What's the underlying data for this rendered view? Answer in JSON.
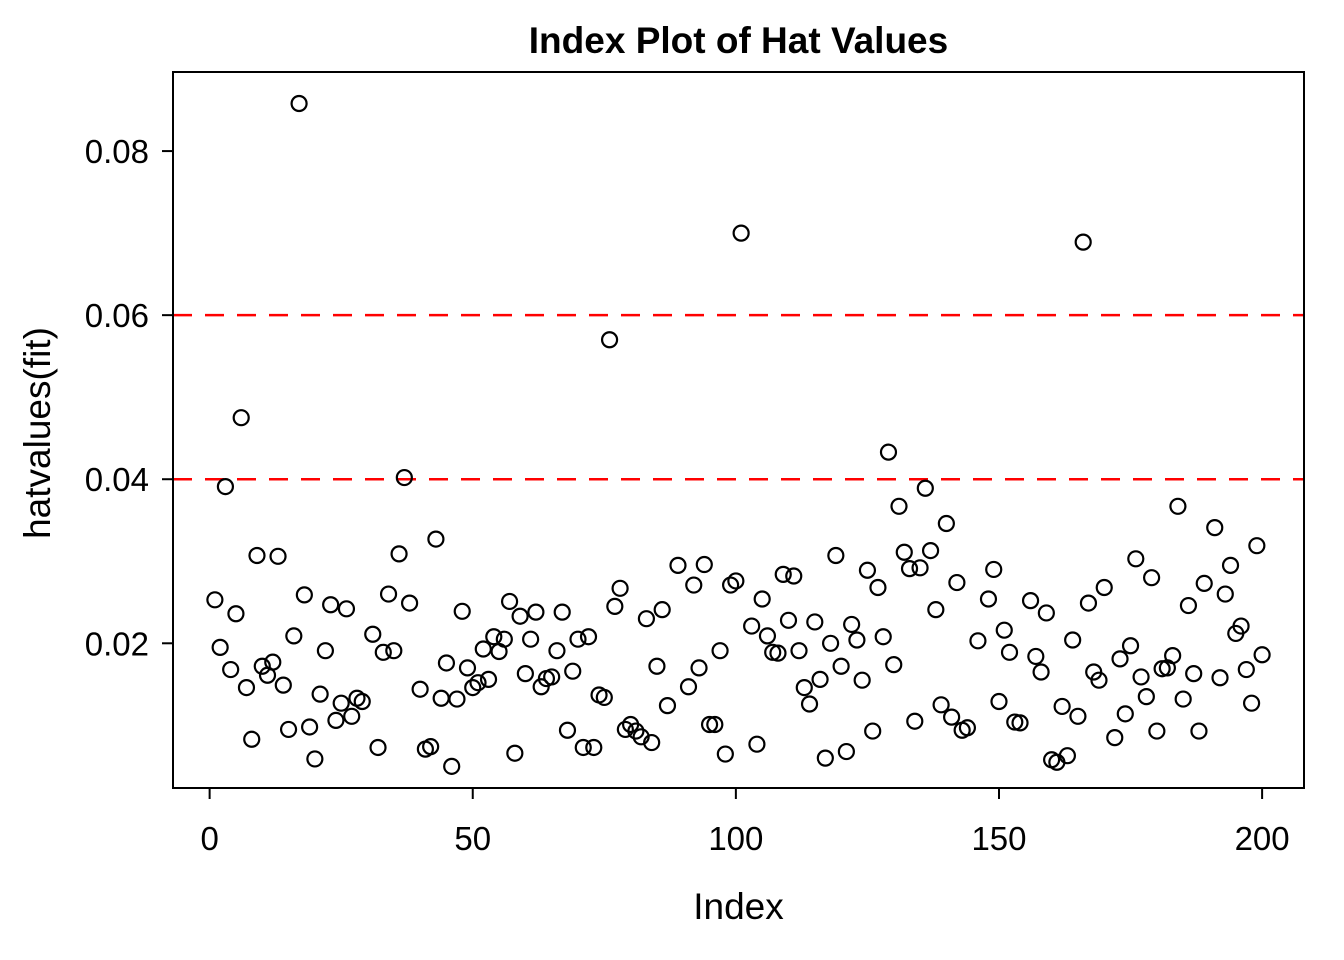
{
  "title": "Index Plot of Hat Values",
  "chart_data": {
    "type": "scatter",
    "title": "Index Plot of Hat Values",
    "xlabel": "Index",
    "ylabel": "hatvalues(fit)",
    "x_ticks": [
      0,
      50,
      100,
      150,
      200
    ],
    "x_tick_labels": [
      "0",
      "50",
      "100",
      "150",
      "200"
    ],
    "y_ticks": [
      0.02,
      0.04,
      0.06,
      0.08
    ],
    "y_tick_labels": [
      "0.02",
      "0.04",
      "0.06",
      "0.08"
    ],
    "xlim": [
      -6.96,
      207.96
    ],
    "ylim": [
      0.00236,
      0.08964
    ],
    "grid": false,
    "legend": null,
    "frame_color": "#000000",
    "point_color": "#000000",
    "cutoff_color": "#ff0000",
    "cutoff_lines": [
      {
        "y": 0.04,
        "style": "dashed",
        "color": "#ff0000"
      },
      {
        "y": 0.06,
        "style": "dashed",
        "color": "#ff0000"
      }
    ],
    "points": [
      [
        1,
        0.0253
      ],
      [
        2,
        0.0195
      ],
      [
        3,
        0.0391
      ],
      [
        4,
        0.0168
      ],
      [
        5,
        0.0236
      ],
      [
        6,
        0.0475
      ],
      [
        7,
        0.0146
      ],
      [
        8,
        0.0083
      ],
      [
        9,
        0.0307
      ],
      [
        10,
        0.0172
      ],
      [
        11,
        0.0161
      ],
      [
        12,
        0.0177
      ],
      [
        13,
        0.0306
      ],
      [
        14,
        0.0149
      ],
      [
        15,
        0.0095
      ],
      [
        16,
        0.0209
      ],
      [
        17,
        0.0858
      ],
      [
        18,
        0.0259
      ],
      [
        19,
        0.0098
      ],
      [
        20,
        0.0059
      ],
      [
        21,
        0.0138
      ],
      [
        22,
        0.0191
      ],
      [
        23,
        0.0247
      ],
      [
        24,
        0.0106
      ],
      [
        25,
        0.0127
      ],
      [
        26,
        0.0242
      ],
      [
        27,
        0.0111
      ],
      [
        28,
        0.0133
      ],
      [
        29,
        0.0129
      ],
      [
        31,
        0.0211
      ],
      [
        32,
        0.0073
      ],
      [
        33,
        0.0189
      ],
      [
        34,
        0.026
      ],
      [
        35,
        0.0191
      ],
      [
        36,
        0.0309
      ],
      [
        37,
        0.0402
      ],
      [
        38,
        0.0249
      ],
      [
        40,
        0.0144
      ],
      [
        41,
        0.0071
      ],
      [
        42,
        0.0074
      ],
      [
        43,
        0.0327
      ],
      [
        44,
        0.0133
      ],
      [
        45,
        0.0176
      ],
      [
        46,
        0.005
      ],
      [
        47,
        0.0132
      ],
      [
        48,
        0.0239
      ],
      [
        49,
        0.017
      ],
      [
        50,
        0.0146
      ],
      [
        51,
        0.0152
      ],
      [
        52,
        0.0193
      ],
      [
        53,
        0.0156
      ],
      [
        54,
        0.0208
      ],
      [
        55,
        0.019
      ],
      [
        56,
        0.0205
      ],
      [
        57,
        0.0251
      ],
      [
        58,
        0.0066
      ],
      [
        59,
        0.0233
      ],
      [
        60,
        0.0163
      ],
      [
        61,
        0.0205
      ],
      [
        62,
        0.0238
      ],
      [
        63,
        0.0147
      ],
      [
        64,
        0.0157
      ],
      [
        65,
        0.0159
      ],
      [
        66,
        0.0191
      ],
      [
        67,
        0.0238
      ],
      [
        68,
        0.0094
      ],
      [
        69,
        0.0166
      ],
      [
        70,
        0.0205
      ],
      [
        71,
        0.0073
      ],
      [
        72,
        0.0208
      ],
      [
        73,
        0.0073
      ],
      [
        74,
        0.0137
      ],
      [
        75,
        0.0134
      ],
      [
        76,
        0.057
      ],
      [
        77,
        0.0245
      ],
      [
        78,
        0.0267
      ],
      [
        79,
        0.0095
      ],
      [
        80,
        0.0101
      ],
      [
        81,
        0.0093
      ],
      [
        82,
        0.0086
      ],
      [
        83,
        0.023
      ],
      [
        84,
        0.0079
      ],
      [
        85,
        0.0172
      ],
      [
        86,
        0.0241
      ],
      [
        87,
        0.0124
      ],
      [
        89,
        0.0295
      ],
      [
        91,
        0.0147
      ],
      [
        92,
        0.0271
      ],
      [
        93,
        0.017
      ],
      [
        94,
        0.0296
      ],
      [
        95,
        0.0101
      ],
      [
        96,
        0.0101
      ],
      [
        97,
        0.0191
      ],
      [
        98,
        0.0065
      ],
      [
        99,
        0.0271
      ],
      [
        100,
        0.0276
      ],
      [
        101,
        0.07
      ],
      [
        103,
        0.0221
      ],
      [
        104,
        0.0077
      ],
      [
        105,
        0.0254
      ],
      [
        106,
        0.0209
      ],
      [
        107,
        0.0189
      ],
      [
        108,
        0.0188
      ],
      [
        109,
        0.0284
      ],
      [
        110,
        0.0228
      ],
      [
        111,
        0.0282
      ],
      [
        112,
        0.0191
      ],
      [
        113,
        0.0146
      ],
      [
        114,
        0.0126
      ],
      [
        115,
        0.0226
      ],
      [
        116,
        0.0156
      ],
      [
        117,
        0.006
      ],
      [
        118,
        0.02
      ],
      [
        119,
        0.0307
      ],
      [
        120,
        0.0172
      ],
      [
        121,
        0.0068
      ],
      [
        122,
        0.0223
      ],
      [
        123,
        0.0204
      ],
      [
        124,
        0.0155
      ],
      [
        125,
        0.0289
      ],
      [
        126,
        0.0093
      ],
      [
        127,
        0.0268
      ],
      [
        128,
        0.0208
      ],
      [
        129,
        0.0433
      ],
      [
        130,
        0.0174
      ],
      [
        131,
        0.0367
      ],
      [
        132,
        0.0311
      ],
      [
        133,
        0.0291
      ],
      [
        134,
        0.0105
      ],
      [
        135,
        0.0292
      ],
      [
        136,
        0.0389
      ],
      [
        137,
        0.0313
      ],
      [
        138,
        0.0241
      ],
      [
        139,
        0.0125
      ],
      [
        140,
        0.0346
      ],
      [
        141,
        0.011
      ],
      [
        142,
        0.0274
      ],
      [
        143,
        0.0094
      ],
      [
        144,
        0.0097
      ],
      [
        146,
        0.0203
      ],
      [
        148,
        0.0254
      ],
      [
        149,
        0.029
      ],
      [
        150,
        0.0129
      ],
      [
        151,
        0.0216
      ],
      [
        152,
        0.0189
      ],
      [
        153,
        0.0104
      ],
      [
        154,
        0.0103
      ],
      [
        156,
        0.0252
      ],
      [
        157,
        0.0184
      ],
      [
        158,
        0.0165
      ],
      [
        159,
        0.0237
      ],
      [
        160,
        0.0058
      ],
      [
        161,
        0.0055
      ],
      [
        162,
        0.0123
      ],
      [
        163,
        0.0063
      ],
      [
        164,
        0.0204
      ],
      [
        165,
        0.0111
      ],
      [
        166,
        0.0689
      ],
      [
        167,
        0.0249
      ],
      [
        168,
        0.0165
      ],
      [
        169,
        0.0155
      ],
      [
        170,
        0.0268
      ],
      [
        172,
        0.0085
      ],
      [
        173,
        0.0181
      ],
      [
        174,
        0.0114
      ],
      [
        175,
        0.0197
      ],
      [
        176,
        0.0303
      ],
      [
        177,
        0.0159
      ],
      [
        178,
        0.0135
      ],
      [
        179,
        0.028
      ],
      [
        180,
        0.0093
      ],
      [
        181,
        0.0169
      ],
      [
        182,
        0.017
      ],
      [
        183,
        0.0185
      ],
      [
        184,
        0.0367
      ],
      [
        185,
        0.0132
      ],
      [
        186,
        0.0246
      ],
      [
        187,
        0.0163
      ],
      [
        188,
        0.0093
      ],
      [
        189,
        0.0273
      ],
      [
        191,
        0.0341
      ],
      [
        192,
        0.0158
      ],
      [
        193,
        0.026
      ],
      [
        194,
        0.0295
      ],
      [
        195,
        0.0212
      ],
      [
        196,
        0.0221
      ],
      [
        197,
        0.0168
      ],
      [
        198,
        0.0127
      ],
      [
        199,
        0.0319
      ],
      [
        200,
        0.0186
      ]
    ]
  }
}
